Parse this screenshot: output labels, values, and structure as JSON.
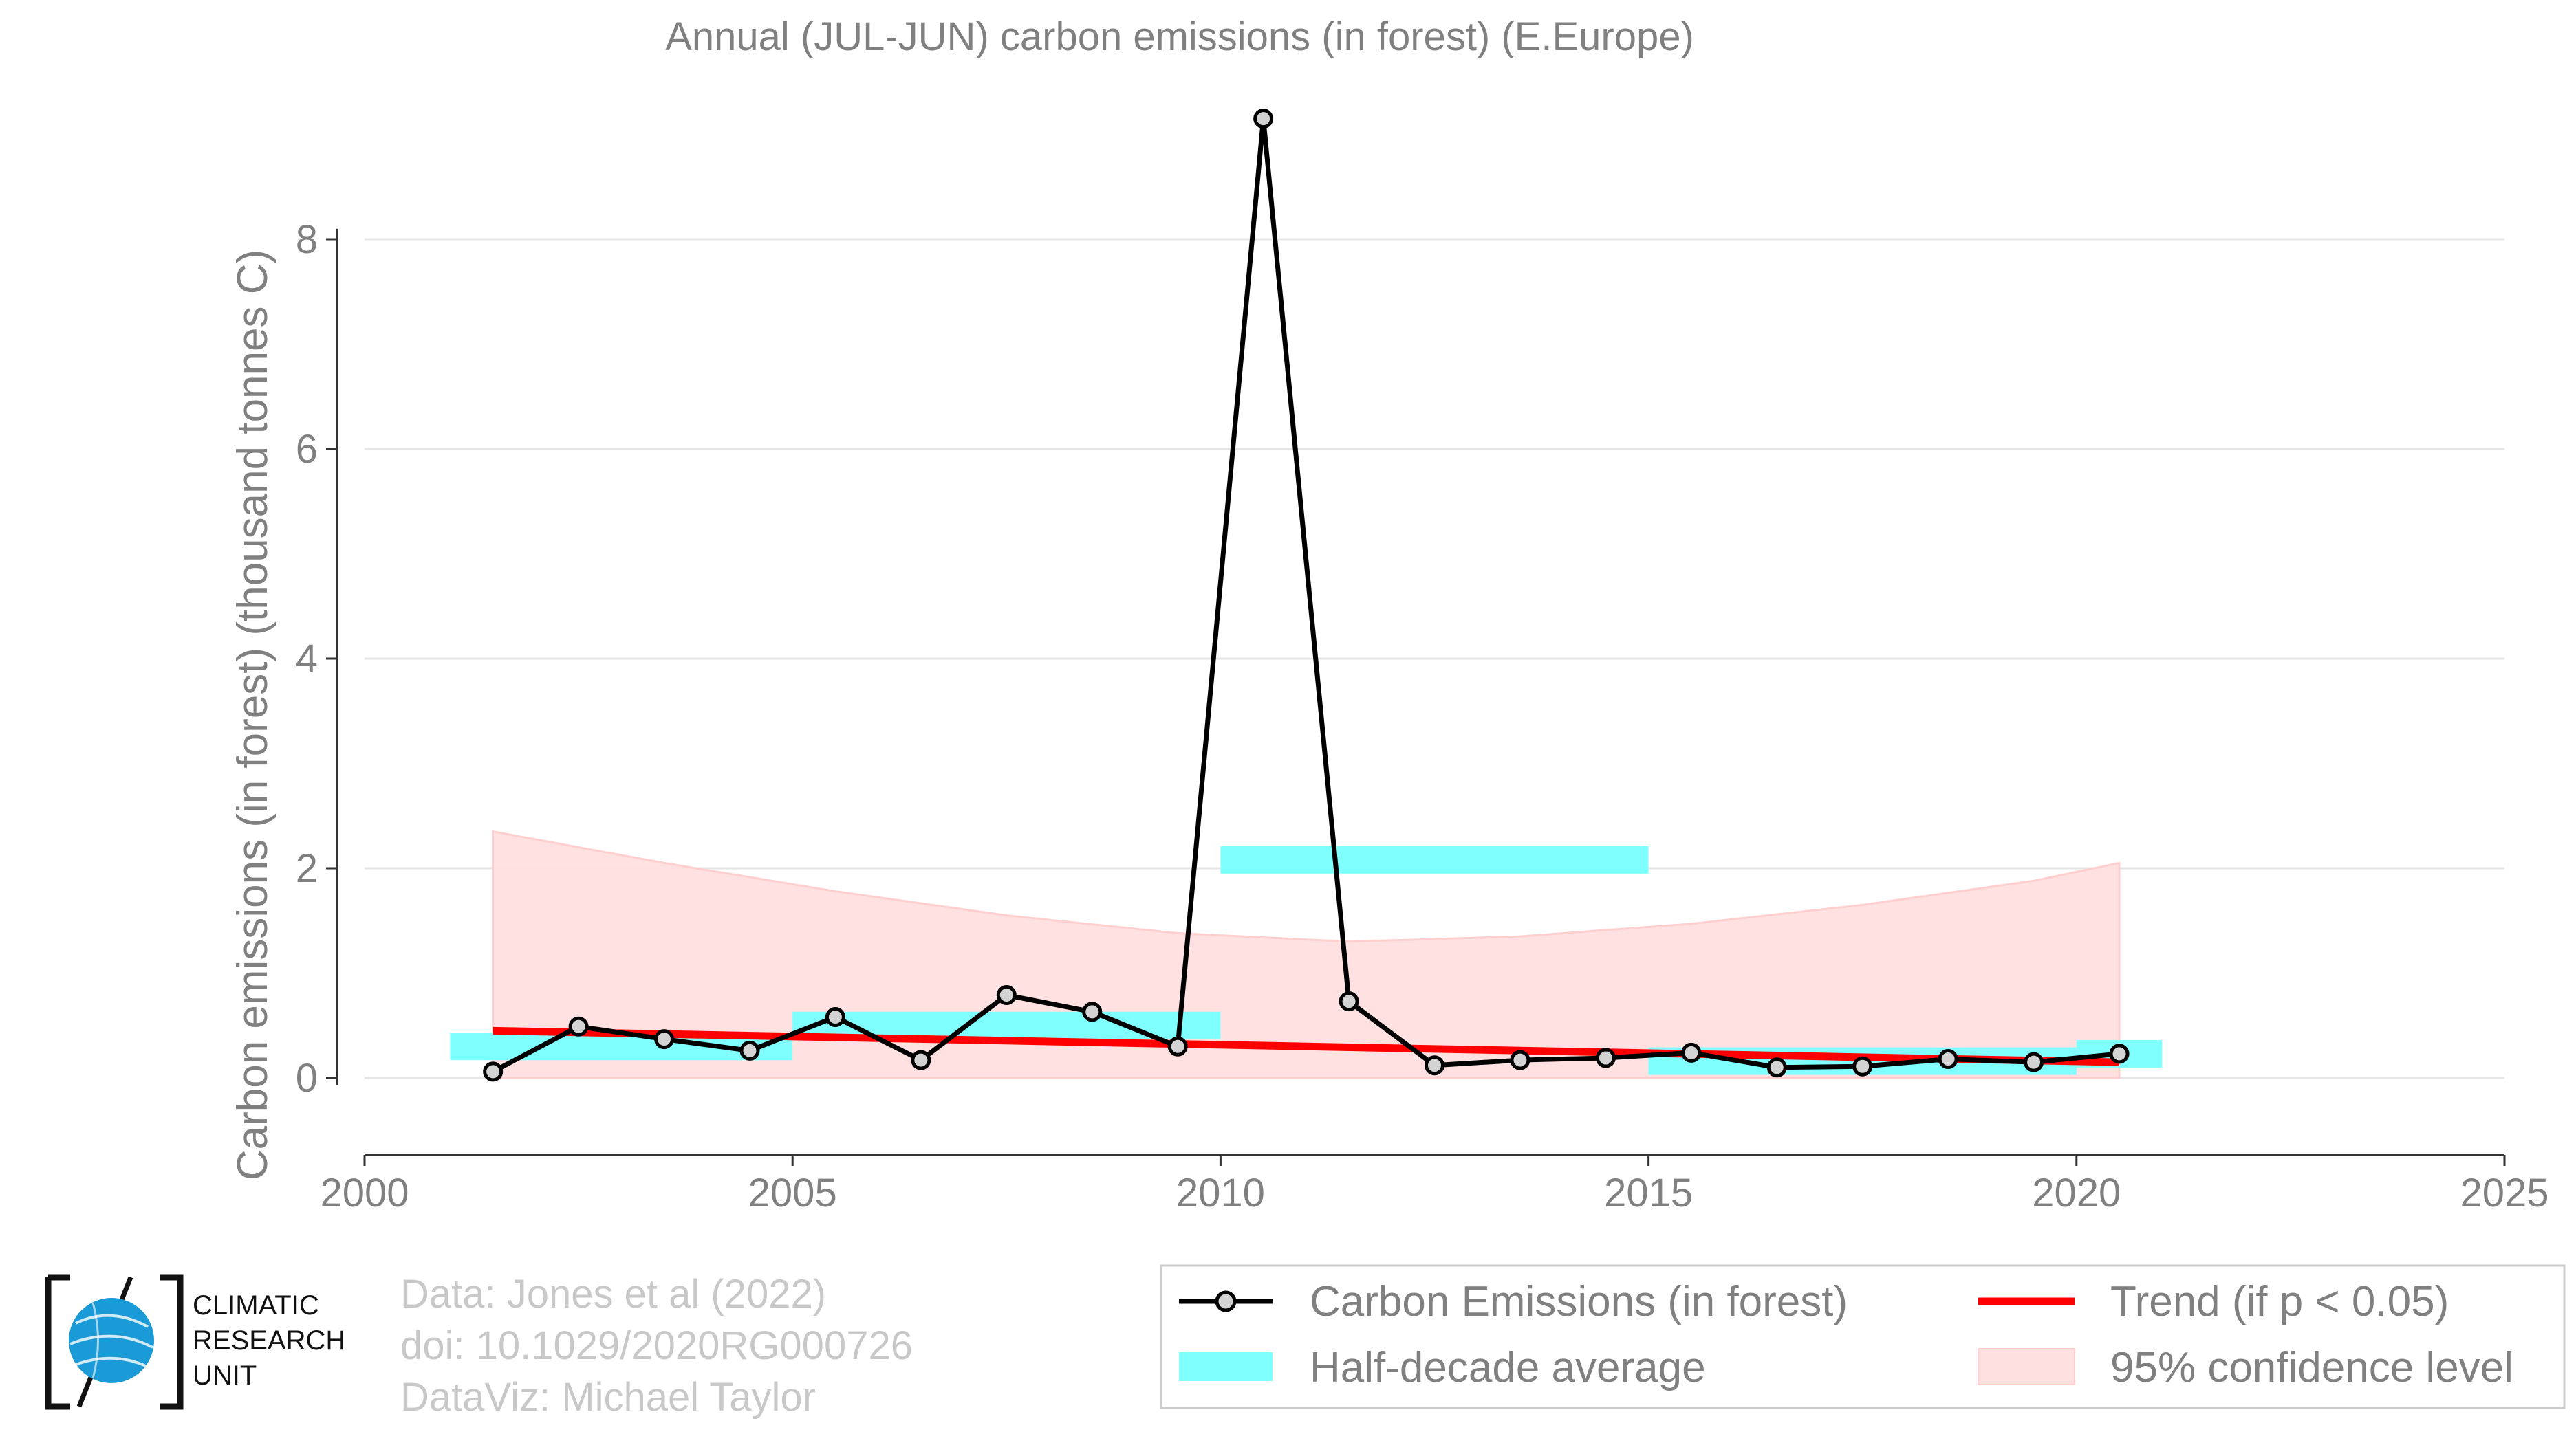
{
  "chart_data": {
    "type": "line",
    "title": "Annual (JUL-JUN) carbon emissions (in forest) (E.Europe)",
    "xlabel": "",
    "ylabel": "Carbon emissions (in forest) (thousand tonnes C)",
    "xlim": [
      2000,
      2025
    ],
    "ylim": [
      -0.75,
      9.2
    ],
    "x_ticks": [
      2000,
      2005,
      2010,
      2015,
      2020,
      2025
    ],
    "y_ticks": [
      0,
      2,
      4,
      6,
      8
    ],
    "grid": "horizontal",
    "legend_position": "bottom-right",
    "series": [
      {
        "name": "Carbon Emissions (in forest)",
        "x": [
          2001.5,
          2002.5,
          2003.5,
          2004.5,
          2005.5,
          2006.5,
          2007.5,
          2008.5,
          2009.5,
          2010.5,
          2011.5,
          2012.5,
          2013.5,
          2014.5,
          2015.5,
          2016.5,
          2017.5,
          2018.5,
          2019.5,
          2020.5
        ],
        "y": [
          0.06,
          0.49,
          0.37,
          0.26,
          0.58,
          0.17,
          0.79,
          0.63,
          0.3,
          9.15,
          0.73,
          0.12,
          0.17,
          0.19,
          0.24,
          0.1,
          0.11,
          0.18,
          0.15,
          0.23
        ]
      },
      {
        "name": "Half-decade average",
        "segments": [
          {
            "x0": 2001,
            "x1": 2005,
            "y": 0.3
          },
          {
            "x0": 2005,
            "x1": 2010,
            "y": 0.5
          },
          {
            "x0": 2010,
            "x1": 2015,
            "y": 2.08
          },
          {
            "x0": 2015,
            "x1": 2020,
            "y": 0.16
          },
          {
            "x0": 2020,
            "x1": 2021,
            "y": 0.23
          }
        ]
      },
      {
        "name": "Trend (if p < 0.05)",
        "x": [
          2001.5,
          2020.5
        ],
        "y": [
          0.45,
          0.15
        ]
      },
      {
        "name": "95% confidence level",
        "x": [
          2001.5,
          2003.5,
          2005.5,
          2007.5,
          2009.5,
          2011.5,
          2013.5,
          2015.5,
          2017.5,
          2019.5,
          2020.5
        ],
        "upper": [
          2.35,
          2.05,
          1.78,
          1.55,
          1.38,
          1.3,
          1.35,
          1.47,
          1.65,
          1.88,
          2.05
        ],
        "lower": [
          0,
          0,
          0,
          0,
          0,
          0,
          0,
          0,
          0,
          0,
          0
        ]
      }
    ]
  },
  "colors": {
    "line": "#000000",
    "marker_fill": "#d3d3d3",
    "half_decade": "#80ffff",
    "trend": "#ff0000",
    "confidence": "#ffe0e0",
    "confidence_edge": "#ffcccc",
    "grid": "#e6e6e6",
    "text": "#808080",
    "credit_text": "#c8c8c8",
    "logo_blue": "#1a9ad6"
  },
  "legend": [
    {
      "label": "Carbon Emissions (in forest)",
      "symbol": "line-marker"
    },
    {
      "label": "Trend (if p < 0.05)",
      "symbol": "red-line"
    },
    {
      "label": "Half-decade average",
      "symbol": "cyan-box"
    },
    {
      "label": "95% confidence level",
      "symbol": "pink-box"
    }
  ],
  "credits": [
    "Data: Jones et al (2022)",
    "doi: 10.1029/2020RG000726",
    "DataViz: Michael Taylor"
  ],
  "logo": {
    "lines": [
      "CLIMATIC",
      "RESEARCH",
      "UNIT"
    ],
    "icon": "globe-icon"
  }
}
